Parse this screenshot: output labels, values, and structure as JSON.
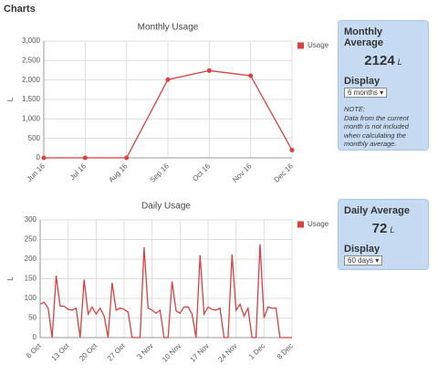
{
  "heading": "Charts",
  "chart_data": [
    {
      "type": "line",
      "title": "Monthly Usage",
      "y_label": "L",
      "markers": true,
      "grid": true,
      "legend": "right",
      "categories": [
        "Jun 16",
        "Jul 16",
        "Aug 16",
        "Sep 16",
        "Oct 16",
        "Nov 16",
        "Dec 16"
      ],
      "series": [
        {
          "name": "Usage",
          "color": "#d9403f",
          "values": [
            0,
            0,
            0,
            2010,
            2240,
            2110,
            200
          ]
        }
      ],
      "ylim": [
        0,
        3000
      ],
      "yticks": [
        0,
        500,
        {
          "value": 1000,
          "label": "1,000"
        },
        {
          "value": 1500,
          "label": "1,500"
        },
        {
          "value": 2000,
          "label": "2,000"
        },
        {
          "value": 2500,
          "label": "2,500"
        },
        {
          "value": 3000,
          "label": "3,000"
        }
      ]
    },
    {
      "type": "line",
      "title": "Daily Usage",
      "y_label": "L",
      "markers": false,
      "grid": true,
      "legend": "right",
      "categories": [
        "6 Oct",
        null,
        null,
        null,
        null,
        null,
        null,
        "13 Oct",
        null,
        null,
        null,
        null,
        null,
        null,
        "20 Oct",
        null,
        null,
        null,
        null,
        null,
        null,
        "27 Oct",
        null,
        null,
        null,
        null,
        null,
        null,
        "3 Nov",
        null,
        null,
        null,
        null,
        null,
        null,
        "10 Nov",
        null,
        null,
        null,
        null,
        null,
        null,
        "17 Nov",
        null,
        null,
        null,
        null,
        null,
        null,
        "24 Nov",
        null,
        null,
        null,
        null,
        null,
        null,
        "1 Dec",
        null,
        null,
        null,
        null,
        null,
        null,
        "8 Dec"
      ],
      "series": [
        {
          "name": "Usage",
          "color": "#d9403f",
          "values": [
            85,
            90,
            75,
            0,
            158,
            80,
            80,
            72,
            70,
            75,
            0,
            148,
            60,
            78,
            60,
            75,
            55,
            0,
            140,
            70,
            75,
            72,
            65,
            0,
            0,
            0,
            230,
            75,
            70,
            62,
            70,
            0,
            0,
            143,
            68,
            62,
            78,
            78,
            60,
            0,
            210,
            60,
            78,
            72,
            70,
            75,
            0,
            0,
            212,
            70,
            85,
            55,
            75,
            0,
            0,
            238,
            50,
            78,
            75,
            75,
            0,
            0,
            0,
            0
          ]
        }
      ],
      "ylim": [
        0,
        300
      ],
      "yticks": [
        0,
        50,
        100,
        150,
        200,
        250,
        300
      ]
    }
  ],
  "panels": [
    {
      "title": "Monthly Average",
      "value": "2124",
      "unit": "L",
      "display_label": "Display",
      "select": "6 months",
      "note_title": "NOTE:",
      "note": "Data from the current month is not included when calculating the monthly average."
    },
    {
      "title": "Daily Average",
      "value": "72",
      "unit": "L",
      "display_label": "Display",
      "select": "60 days"
    }
  ]
}
